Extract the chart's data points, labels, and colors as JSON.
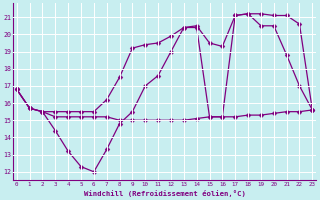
{
  "flat_x": [
    0,
    1,
    2,
    3,
    4,
    5,
    6,
    7,
    8,
    9,
    10,
    11,
    12,
    13,
    14,
    15,
    16,
    17,
    18,
    19,
    20,
    21,
    22,
    23
  ],
  "flat_y": [
    16.8,
    15.7,
    15.5,
    15.2,
    15.2,
    15.2,
    15.2,
    15.2,
    15.0,
    15.0,
    15.0,
    15.0,
    15.0,
    15.0,
    15.1,
    15.2,
    15.2,
    15.2,
    15.3,
    15.3,
    15.4,
    15.5,
    15.5,
    15.6
  ],
  "dip_x": [
    0,
    1,
    2,
    3,
    4,
    5,
    6,
    7,
    8,
    9,
    10,
    11,
    12,
    13,
    14,
    15,
    16,
    17,
    18,
    19,
    20,
    21,
    22,
    23
  ],
  "dip_y": [
    16.8,
    15.7,
    15.5,
    14.4,
    13.2,
    12.3,
    12.0,
    13.3,
    14.8,
    15.5,
    17.0,
    17.6,
    19.0,
    20.4,
    20.4,
    15.2,
    15.2,
    21.1,
    21.2,
    20.5,
    20.5,
    18.8,
    17.0,
    15.6
  ],
  "top_x": [
    0,
    1,
    2,
    3,
    4,
    5,
    6,
    7,
    8,
    9,
    10,
    11,
    12,
    13,
    14,
    15,
    16,
    17,
    18,
    19,
    20,
    21,
    22,
    23
  ],
  "top_y": [
    16.8,
    15.7,
    15.5,
    15.5,
    15.5,
    15.5,
    15.5,
    16.2,
    17.5,
    19.2,
    19.4,
    19.5,
    19.9,
    20.4,
    20.5,
    19.5,
    19.3,
    21.1,
    21.2,
    21.2,
    21.1,
    21.1,
    20.6,
    15.6
  ],
  "xlim": [
    -0.3,
    23.3
  ],
  "ylim": [
    11.5,
    21.8
  ],
  "yticks": [
    12,
    13,
    14,
    15,
    16,
    17,
    18,
    19,
    20,
    21
  ],
  "xticks": [
    0,
    1,
    2,
    3,
    4,
    5,
    6,
    7,
    8,
    9,
    10,
    11,
    12,
    13,
    14,
    15,
    16,
    17,
    18,
    19,
    20,
    21,
    22,
    23
  ],
  "xlabel": "Windchill (Refroidissement éolien,°C)",
  "bg_color": "#c8eef0",
  "grid_color": "#ffffff",
  "line_color": "#800080",
  "markersize": 2.5,
  "linewidth": 0.9
}
